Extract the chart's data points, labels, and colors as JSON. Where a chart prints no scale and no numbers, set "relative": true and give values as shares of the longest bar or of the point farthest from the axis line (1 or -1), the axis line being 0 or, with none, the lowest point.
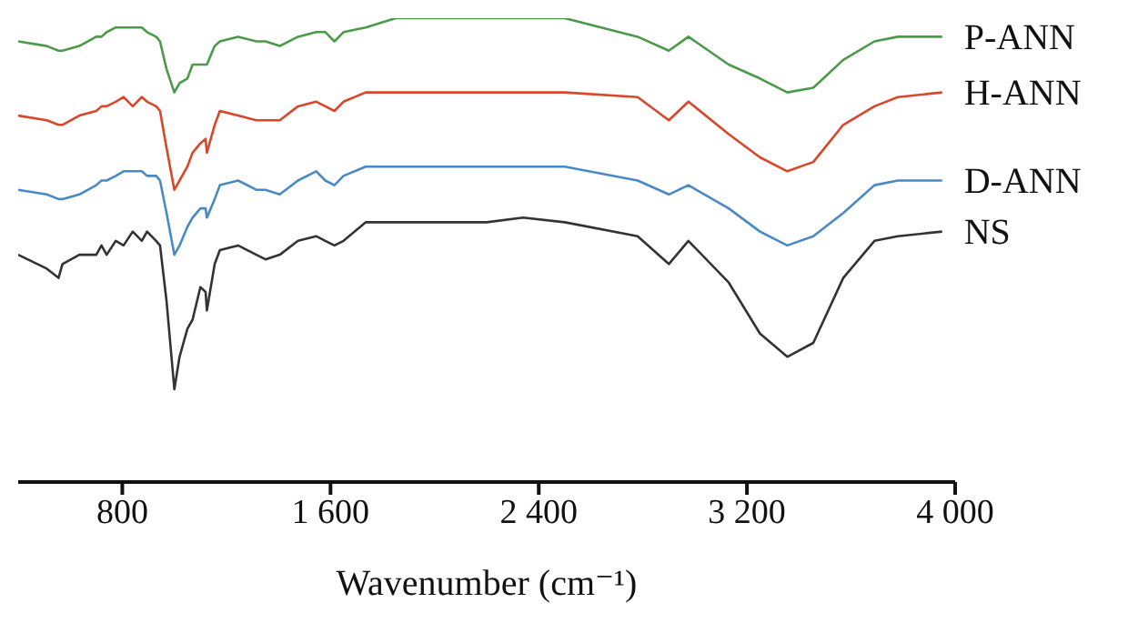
{
  "chart_data": {
    "type": "line",
    "xlabel": "Wavenumber (cm⁻¹)",
    "relative": true,
    "marker": "none",
    "xlim": [
      400,
      4000
    ],
    "xticks": [
      {
        "value": 800,
        "label": "800"
      },
      {
        "value": 1600,
        "label": "1 600"
      },
      {
        "value": 2400,
        "label": "2 400"
      },
      {
        "value": 3200,
        "label": "3 200"
      },
      {
        "value": 4000,
        "label": "4 000"
      }
    ],
    "x": [
      400,
      510,
      555,
      570,
      635,
      700,
      720,
      740,
      775,
      805,
      840,
      875,
      895,
      930,
      945,
      970,
      1000,
      1020,
      1050,
      1070,
      1100,
      1120,
      1125,
      1155,
      1175,
      1245,
      1315,
      1350,
      1405,
      1475,
      1545,
      1580,
      1615,
      1650,
      1735,
      1850,
      2200,
      2340,
      2500,
      2780,
      2900,
      2975,
      3130,
      3250,
      3355,
      3455,
      3570,
      3690,
      3780,
      3950
    ],
    "series": [
      {
        "name": "P-ANN",
        "color": "#4a9a4a",
        "values": [
          0.95,
          0.94,
          0.93,
          0.93,
          0.94,
          0.96,
          0.96,
          0.97,
          0.98,
          0.98,
          0.98,
          0.98,
          0.97,
          0.96,
          0.95,
          0.89,
          0.84,
          0.86,
          0.87,
          0.9,
          0.9,
          0.9,
          0.9,
          0.94,
          0.95,
          0.96,
          0.95,
          0.95,
          0.94,
          0.96,
          0.97,
          0.97,
          0.95,
          0.97,
          0.98,
          1,
          1,
          1,
          1,
          0.96,
          0.93,
          0.96,
          0.9,
          0.87,
          0.84,
          0.85,
          0.91,
          0.95,
          0.96,
          0.96
        ]
      },
      {
        "name": "H-ANN",
        "color": "#d9472b",
        "values": [
          0.79,
          0.78,
          0.77,
          0.77,
          0.79,
          0.8,
          0.81,
          0.81,
          0.82,
          0.83,
          0.81,
          0.83,
          0.82,
          0.81,
          0.8,
          0.72,
          0.63,
          0.65,
          0.68,
          0.71,
          0.73,
          0.74,
          0.71,
          0.77,
          0.8,
          0.79,
          0.78,
          0.78,
          0.78,
          0.81,
          0.82,
          0.81,
          0.8,
          0.82,
          0.84,
          0.84,
          0.84,
          0.84,
          0.84,
          0.83,
          0.78,
          0.82,
          0.75,
          0.7,
          0.67,
          0.69,
          0.77,
          0.81,
          0.83,
          0.84
        ]
      },
      {
        "name": "D-ANN",
        "color": "#4a8ac4",
        "values": [
          0.63,
          0.62,
          0.61,
          0.61,
          0.62,
          0.64,
          0.65,
          0.65,
          0.66,
          0.67,
          0.67,
          0.67,
          0.66,
          0.66,
          0.65,
          0.58,
          0.49,
          0.51,
          0.55,
          0.57,
          0.59,
          0.59,
          0.57,
          0.61,
          0.64,
          0.65,
          0.63,
          0.63,
          0.62,
          0.65,
          0.67,
          0.65,
          0.64,
          0.66,
          0.68,
          0.68,
          0.68,
          0.68,
          0.68,
          0.65,
          0.62,
          0.64,
          0.59,
          0.54,
          0.51,
          0.53,
          0.58,
          0.64,
          0.65,
          0.65
        ]
      },
      {
        "name": "NS",
        "color": "#333333",
        "values": [
          0.49,
          0.46,
          0.44,
          0.47,
          0.49,
          0.49,
          0.51,
          0.49,
          0.52,
          0.51,
          0.54,
          0.52,
          0.54,
          0.52,
          0.51,
          0.39,
          0.2,
          0.27,
          0.33,
          0.35,
          0.42,
          0.41,
          0.37,
          0.47,
          0.5,
          0.51,
          0.49,
          0.48,
          0.49,
          0.52,
          0.53,
          0.52,
          0.51,
          0.52,
          0.56,
          0.56,
          0.56,
          0.57,
          0.56,
          0.53,
          0.47,
          0.52,
          0.43,
          0.32,
          0.27,
          0.3,
          0.44,
          0.52,
          0.53,
          0.54
        ]
      }
    ]
  }
}
